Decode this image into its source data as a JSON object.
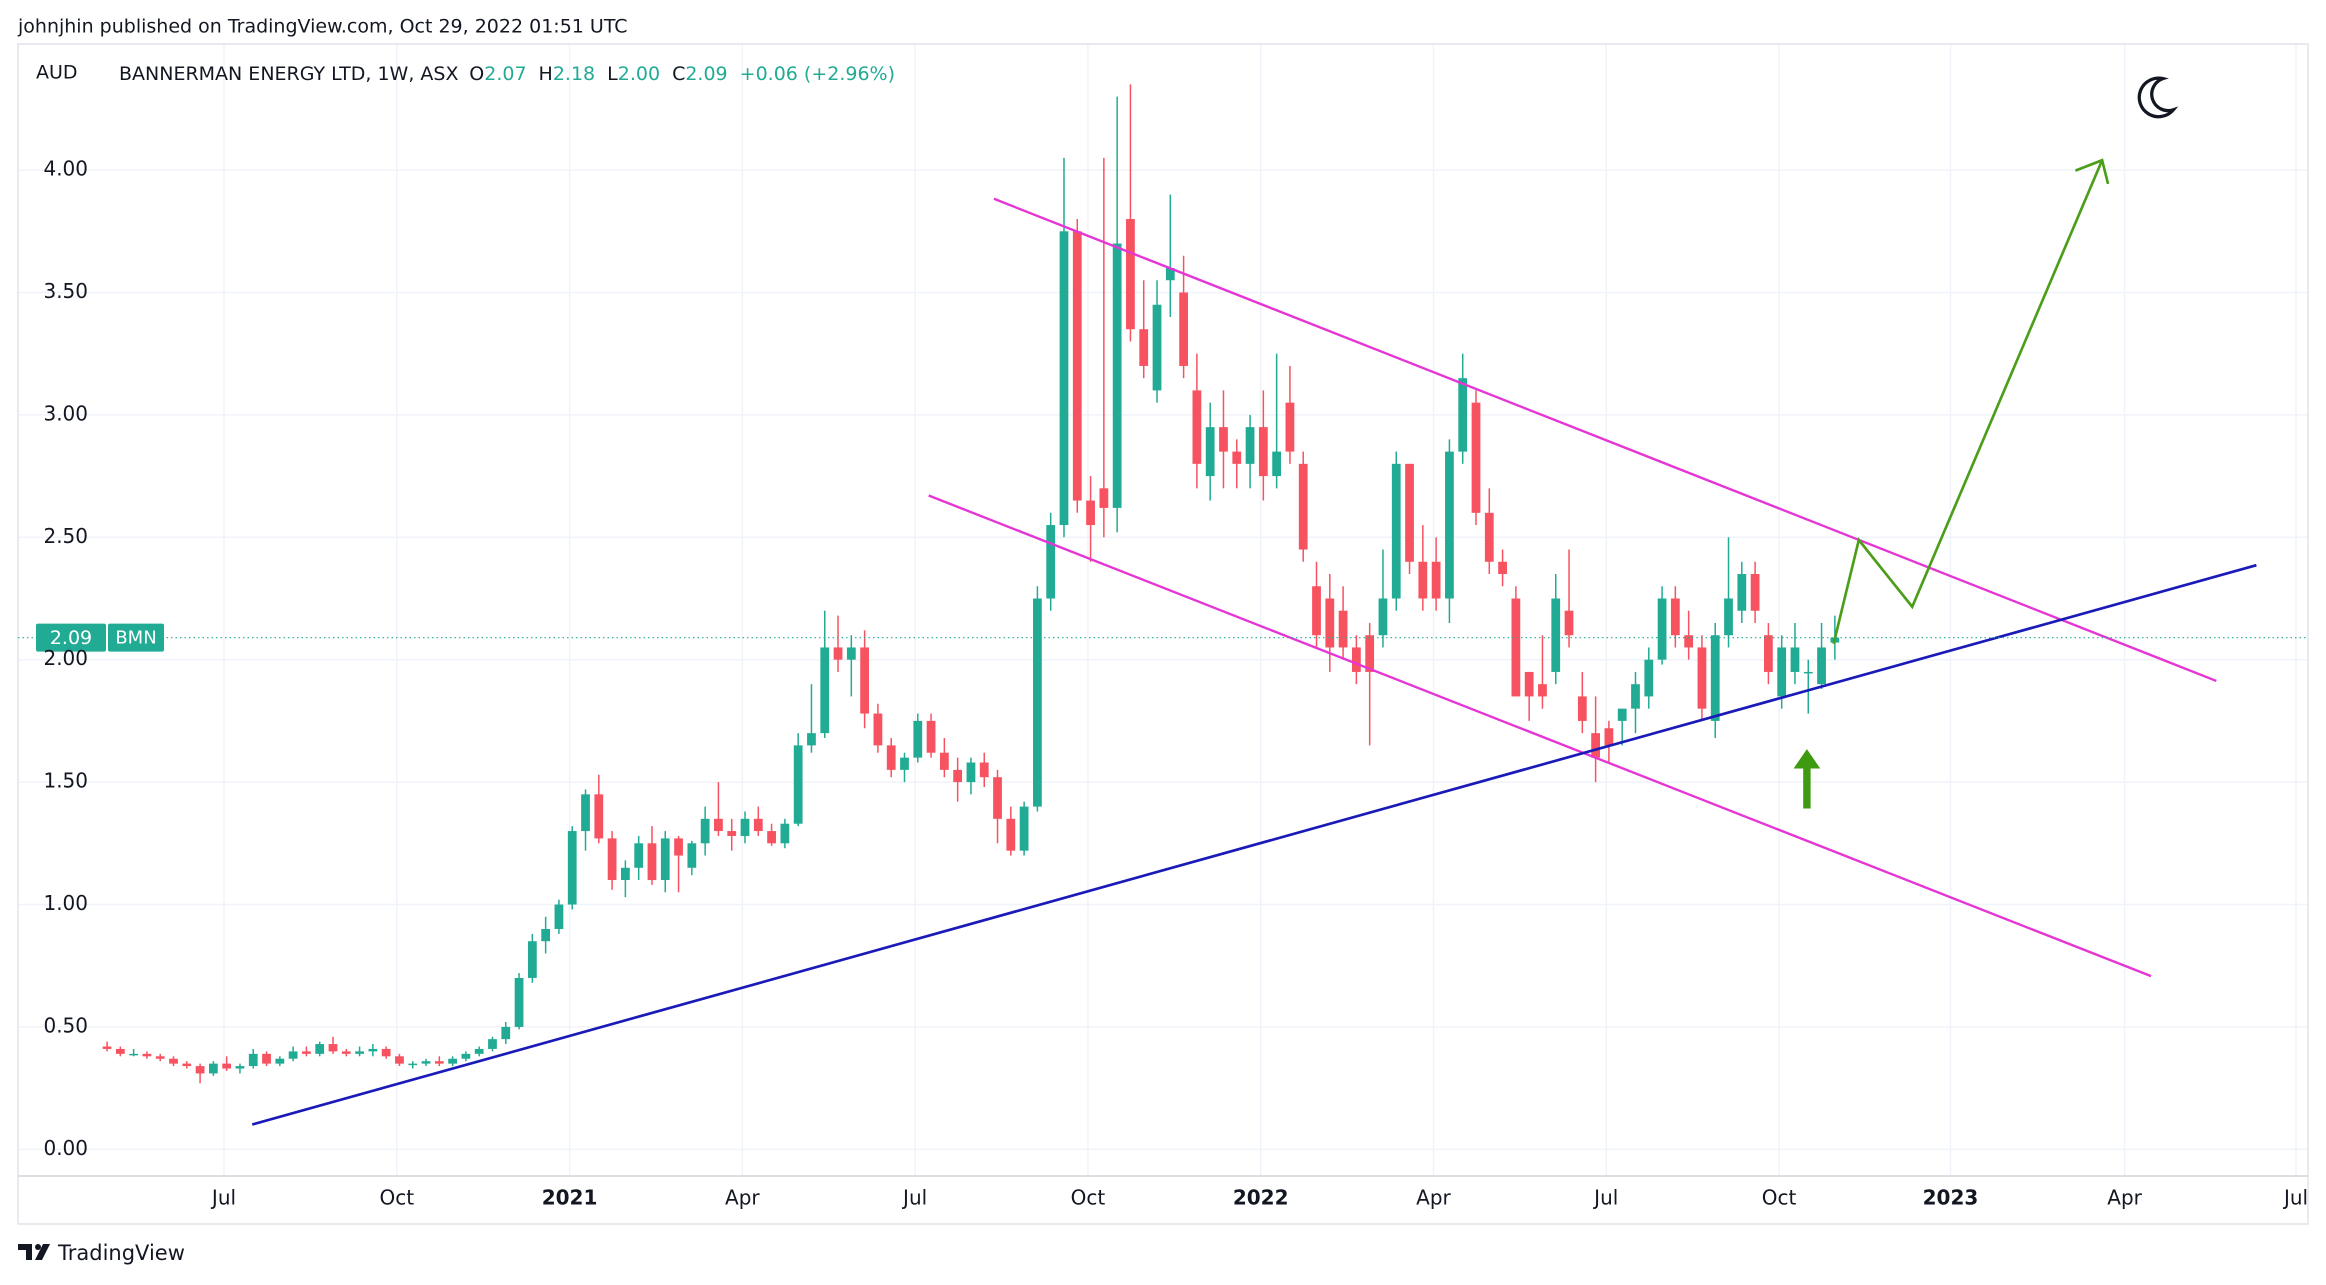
{
  "header": {
    "published": "johnjhin published on TradingView.com, Oct 29, 2022 01:51 UTC",
    "brand": "TradingView"
  },
  "chart_data": {
    "type": "candlestick",
    "title": "BANNERMAN ENERGY LTD, 1W, ASX",
    "currency": "AUD",
    "symbol": "BMN",
    "readout": [
      {
        "label": "O",
        "value": "2.07"
      },
      {
        "label": "H",
        "value": "2.18"
      },
      {
        "label": "L",
        "value": "2.00"
      },
      {
        "label": "C",
        "value": "2.09"
      }
    ],
    "change": "+0.06 (+2.96%)",
    "last_price": 2.09,
    "up_color": "#22ab94",
    "down_color": "#f7525f",
    "grid": true,
    "open": [
      0.42,
      0.41,
      0.39,
      0.39,
      0.38,
      0.37,
      0.35,
      0.34,
      0.31,
      0.35,
      0.33,
      0.34,
      0.39,
      0.35,
      0.37,
      0.4,
      0.39,
      0.43,
      0.4,
      0.39,
      0.4,
      0.41,
      0.38,
      0.35,
      0.35,
      0.36,
      0.35,
      0.37,
      0.39,
      0.41,
      0.45,
      0.5,
      0.7,
      0.85,
      0.9,
      1.0,
      1.3,
      1.45,
      1.27,
      1.1,
      1.15,
      1.25,
      1.1,
      1.27,
      1.15,
      1.25,
      1.35,
      1.3,
      1.28,
      1.35,
      1.3,
      1.25,
      1.33,
      1.65,
      1.7,
      2.05,
      2.0,
      2.05,
      1.78,
      1.65,
      1.55,
      1.6,
      1.75,
      1.62,
      1.55,
      1.5,
      1.58,
      1.52,
      1.35,
      1.22,
      1.4,
      2.25,
      2.55,
      3.75,
      2.65,
      2.7,
      2.62,
      3.8,
      3.35,
      3.1,
      3.55,
      3.5,
      3.1,
      2.75,
      2.95,
      2.85,
      2.8,
      2.95,
      2.75,
      3.05,
      2.8,
      2.3,
      2.25,
      2.2,
      2.05,
      2.1,
      2.1,
      2.25,
      2.8,
      2.4,
      2.4,
      2.25,
      2.85,
      3.05,
      2.6,
      2.4,
      2.25,
      1.95,
      1.9,
      1.95,
      2.2,
      1.85,
      1.7,
      1.72,
      1.75,
      1.8,
      1.85,
      2.0,
      2.25,
      2.1,
      2.05,
      1.75,
      2.1,
      2.2,
      2.35,
      2.1,
      1.85,
      1.95,
      1.95,
      1.9,
      2.07
    ],
    "high": [
      0.44,
      0.42,
      0.41,
      0.4,
      0.39,
      0.38,
      0.36,
      0.35,
      0.36,
      0.38,
      0.35,
      0.41,
      0.4,
      0.38,
      0.42,
      0.42,
      0.44,
      0.46,
      0.41,
      0.42,
      0.43,
      0.42,
      0.39,
      0.36,
      0.37,
      0.38,
      0.38,
      0.4,
      0.42,
      0.46,
      0.52,
      0.72,
      0.88,
      0.95,
      1.02,
      1.32,
      1.47,
      1.53,
      1.3,
      1.18,
      1.28,
      1.32,
      1.3,
      1.28,
      1.26,
      1.4,
      1.5,
      1.35,
      1.38,
      1.4,
      1.33,
      1.35,
      1.7,
      1.9,
      2.2,
      2.18,
      2.1,
      2.12,
      1.82,
      1.68,
      1.62,
      1.78,
      1.78,
      1.68,
      1.6,
      1.6,
      1.62,
      1.55,
      1.4,
      1.42,
      2.3,
      2.6,
      4.05,
      3.8,
      2.75,
      4.05,
      4.3,
      4.35,
      3.55,
      3.55,
      3.9,
      3.65,
      3.25,
      3.05,
      3.1,
      2.9,
      3.0,
      3.1,
      3.25,
      3.2,
      2.85,
      2.4,
      2.35,
      2.3,
      2.1,
      2.15,
      2.45,
      2.85,
      2.8,
      2.55,
      2.5,
      2.9,
      3.25,
      3.1,
      2.7,
      2.45,
      2.3,
      1.95,
      2.1,
      2.35,
      2.45,
      1.95,
      1.85,
      1.75,
      1.8,
      1.95,
      2.05,
      2.3,
      2.3,
      2.2,
      2.1,
      2.15,
      2.5,
      2.4,
      2.4,
      2.15,
      2.1,
      2.15,
      2.0,
      2.15,
      2.18
    ],
    "low": [
      0.4,
      0.38,
      0.38,
      0.37,
      0.36,
      0.34,
      0.33,
      0.27,
      0.3,
      0.32,
      0.31,
      0.33,
      0.34,
      0.34,
      0.36,
      0.38,
      0.38,
      0.39,
      0.38,
      0.38,
      0.38,
      0.37,
      0.34,
      0.33,
      0.34,
      0.34,
      0.34,
      0.36,
      0.38,
      0.4,
      0.43,
      0.49,
      0.68,
      0.8,
      0.88,
      0.98,
      1.22,
      1.25,
      1.06,
      1.03,
      1.1,
      1.08,
      1.05,
      1.05,
      1.12,
      1.2,
      1.28,
      1.22,
      1.25,
      1.28,
      1.24,
      1.23,
      1.32,
      1.62,
      1.68,
      1.95,
      1.85,
      1.72,
      1.62,
      1.52,
      1.5,
      1.58,
      1.6,
      1.52,
      1.42,
      1.45,
      1.48,
      1.25,
      1.2,
      1.2,
      1.38,
      2.2,
      2.5,
      2.6,
      2.4,
      2.5,
      2.52,
      3.3,
      3.15,
      3.05,
      3.4,
      3.15,
      2.7,
      2.65,
      2.7,
      2.7,
      2.7,
      2.65,
      2.7,
      2.8,
      2.4,
      2.05,
      1.95,
      2.0,
      1.9,
      1.65,
      2.05,
      2.2,
      2.35,
      2.2,
      2.2,
      2.15,
      2.8,
      2.55,
      2.35,
      2.3,
      1.85,
      1.75,
      1.8,
      1.9,
      2.05,
      1.7,
      1.5,
      1.58,
      1.65,
      1.7,
      1.8,
      1.98,
      2.05,
      2.0,
      1.75,
      1.68,
      2.05,
      2.15,
      2.15,
      1.9,
      1.8,
      1.9,
      1.78,
      1.88,
      2.0
    ],
    "close": [
      0.41,
      0.39,
      0.39,
      0.38,
      0.37,
      0.35,
      0.34,
      0.31,
      0.35,
      0.33,
      0.34,
      0.39,
      0.35,
      0.37,
      0.4,
      0.39,
      0.43,
      0.4,
      0.39,
      0.4,
      0.41,
      0.38,
      0.35,
      0.35,
      0.36,
      0.35,
      0.37,
      0.39,
      0.41,
      0.45,
      0.5,
      0.7,
      0.85,
      0.9,
      1.0,
      1.3,
      1.45,
      1.27,
      1.1,
      1.15,
      1.25,
      1.1,
      1.27,
      1.2,
      1.25,
      1.35,
      1.3,
      1.28,
      1.35,
      1.3,
      1.25,
      1.33,
      1.65,
      1.7,
      2.05,
      2.0,
      2.05,
      1.78,
      1.65,
      1.55,
      1.6,
      1.75,
      1.62,
      1.55,
      1.5,
      1.58,
      1.52,
      1.35,
      1.22,
      1.4,
      2.25,
      2.55,
      3.75,
      2.65,
      2.55,
      2.62,
      3.7,
      3.35,
      3.2,
      3.45,
      3.6,
      3.2,
      2.8,
      2.95,
      2.85,
      2.8,
      2.95,
      2.75,
      2.85,
      2.85,
      2.45,
      2.1,
      2.05,
      2.05,
      1.95,
      1.95,
      2.25,
      2.8,
      2.4,
      2.25,
      2.25,
      2.85,
      3.15,
      2.6,
      2.4,
      2.35,
      1.85,
      1.85,
      1.85,
      2.25,
      2.1,
      1.75,
      1.6,
      1.65,
      1.8,
      1.9,
      2.0,
      2.25,
      2.1,
      2.05,
      1.8,
      2.1,
      2.25,
      2.35,
      2.2,
      1.95,
      2.05,
      2.05,
      1.95,
      2.05,
      2.09
    ],
    "xlim": [
      -6.7,
      165.6
    ],
    "xticks": [
      {
        "value": 8.8,
        "label": "Jul"
      },
      {
        "value": 21.8,
        "label": "Oct"
      },
      {
        "value": 34.8,
        "label": "2021"
      },
      {
        "value": 47.8,
        "label": "Apr"
      },
      {
        "value": 60.8,
        "label": "Jul"
      },
      {
        "value": 73.8,
        "label": "Oct"
      },
      {
        "value": 86.8,
        "label": "2022"
      },
      {
        "value": 99.8,
        "label": "Apr"
      },
      {
        "value": 112.8,
        "label": "Jul"
      },
      {
        "value": 125.8,
        "label": "Oct"
      },
      {
        "value": 138.7,
        "label": "2023"
      },
      {
        "value": 151.8,
        "label": "Apr"
      },
      {
        "value": 164.7,
        "label": "Jul"
      }
    ],
    "ylim": [
      -0.109,
      4.515
    ],
    "yticks": [
      {
        "value": 0,
        "label": "0.00"
      },
      {
        "value": 0.5,
        "label": "0.50"
      },
      {
        "value": 1,
        "label": "1.00"
      },
      {
        "value": 1.5,
        "label": "1.50"
      },
      {
        "value": 2,
        "label": "2.00"
      },
      {
        "value": 2.5,
        "label": "2.50"
      },
      {
        "value": 3,
        "label": "3.00"
      },
      {
        "value": 3.5,
        "label": "3.50"
      },
      {
        "value": 4,
        "label": "4.00"
      }
    ]
  }
}
